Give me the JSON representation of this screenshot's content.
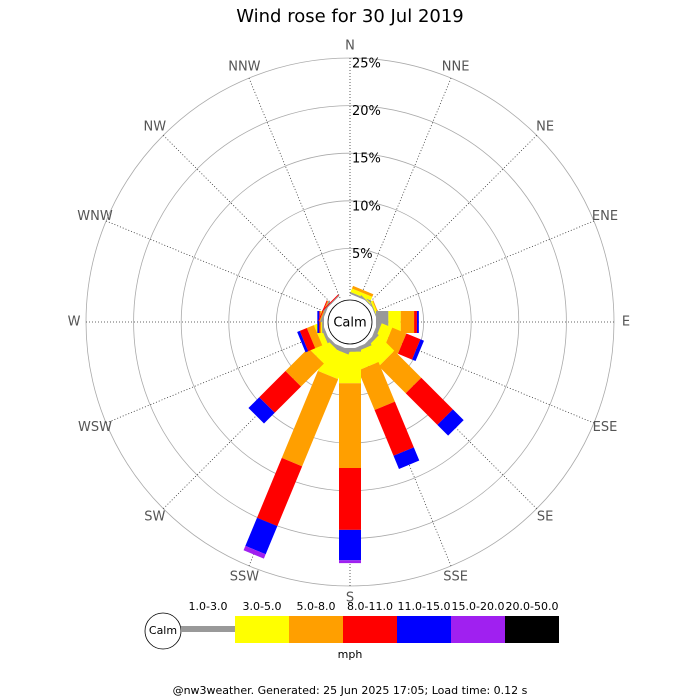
{
  "chart_data": {
    "type": "windrose",
    "title": "Wind rose for 30 Jul 2019",
    "directions": [
      "N",
      "NNE",
      "NE",
      "ENE",
      "E",
      "ESE",
      "SE",
      "SSE",
      "S",
      "SSW",
      "SW",
      "WSW",
      "W",
      "WNW",
      "NW",
      "NNW"
    ],
    "rlim": [
      0,
      25
    ],
    "rticks": [
      {
        "value": 5,
        "label": "5%"
      },
      {
        "value": 10,
        "label": "10%"
      },
      {
        "value": 15,
        "label": "15%"
      },
      {
        "value": 20,
        "label": "20%"
      },
      {
        "value": 25,
        "label": "25%"
      }
    ],
    "calm_label": "Calm",
    "unit": "mph",
    "series": [
      {
        "name": "1.0-3.0",
        "color": "#999999",
        "values": [
          0,
          0.2,
          0.1,
          0.1,
          1.3,
          0.4,
          0.4,
          0.4,
          0.4,
          0.5,
          0.3,
          0.3,
          0.2,
          0.2,
          0.1,
          0
        ]
      },
      {
        "name": "3.0-5.0",
        "color": "#ffff00",
        "values": [
          0,
          0.4,
          0.1,
          0.2,
          1.3,
          1.2,
          2.3,
          1.9,
          3.3,
          2.8,
          2.0,
          0.6,
          0.1,
          0,
          0,
          0
        ]
      },
      {
        "name": "5.0-8.0",
        "color": "#ff9f00",
        "values": [
          0,
          0.3,
          0,
          0.1,
          1.4,
          1.6,
          4.0,
          4.5,
          8.9,
          9.9,
          3.4,
          0.8,
          0.1,
          0.1,
          0,
          0
        ]
      },
      {
        "name": "8.0-11.0",
        "color": "#ff0000",
        "values": [
          0,
          0,
          0,
          0,
          0.3,
          1.6,
          4.7,
          5.2,
          6.5,
          6.8,
          3.9,
          0.8,
          0.1,
          0.1,
          0.1,
          0
        ]
      },
      {
        "name": "11.0-15.0",
        "color": "#0000ff",
        "values": [
          0,
          0,
          0,
          0,
          0.2,
          0.4,
          1.6,
          1.5,
          3.2,
          3.2,
          1.6,
          0.3,
          0.2,
          0,
          0,
          0
        ]
      },
      {
        "name": "15.0-20.0",
        "color": "#a020f0",
        "values": [
          0,
          0,
          0,
          0,
          0,
          0,
          0,
          0,
          0.3,
          0.5,
          0,
          0,
          0,
          0,
          0,
          0
        ]
      },
      {
        "name": "20.0-50.0",
        "color": "#000000",
        "values": [
          0,
          0,
          0,
          0,
          0,
          0,
          0,
          0,
          0,
          0,
          0,
          0,
          0,
          0,
          0,
          0
        ]
      }
    ],
    "footer": "@nw3weather. Generated: 25 Jun 2025 17:05; Load time: 0.12 s"
  }
}
